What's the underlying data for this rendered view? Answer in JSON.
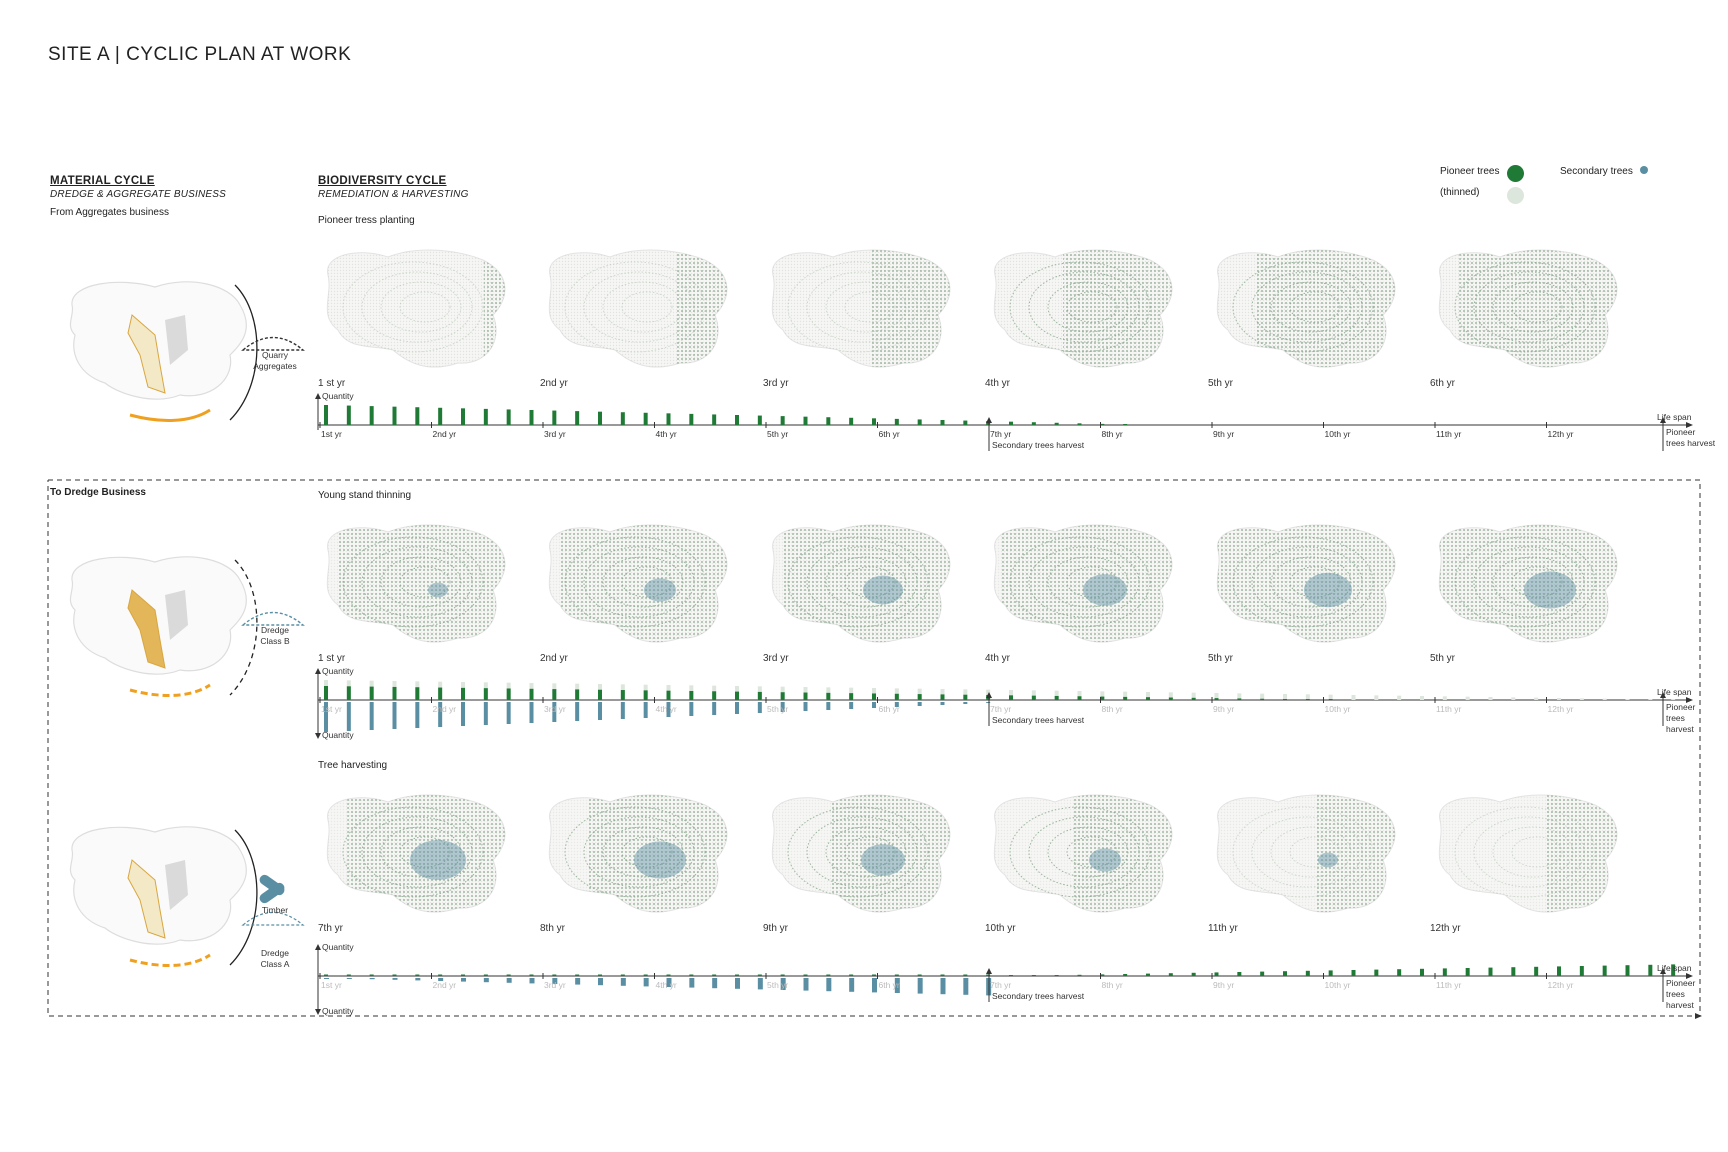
{
  "title": "SITE A | CYCLIC PLAN AT WORK",
  "colors": {
    "pioneer": "#1f7a35",
    "pioneer_thinned": "#dde6dc",
    "secondary": "#5a8fa3",
    "sand": "#f3e9c6",
    "orange": "#f0a020",
    "map_fill": "#b8ccb8"
  },
  "material_cycle": {
    "heading": "MATERIAL CYCLE",
    "subheading": "DREDGE & AGGREGATE BUSINESS",
    "from_label": "From Aggregates business",
    "to_label": "To Dredge Business",
    "items": [
      {
        "label1": "Quarry",
        "label2": "Aggregates",
        "icon": "gravel-pile-icon"
      },
      {
        "label1": "Dredge",
        "label2": "Class B",
        "icon": "dredge-pile-icon"
      },
      {
        "label1": "Timber",
        "label2": "",
        "icon": "timber-logs-icon",
        "extra1": "Dredge",
        "extra2": "Class A"
      }
    ]
  },
  "biodiversity_cycle": {
    "heading": "BIODIVERSITY CYCLE",
    "subheading": "REMEDIATION & HARVESTING"
  },
  "legend": {
    "pioneer_label": "Pioneer trees",
    "thinned_label": "(thinned)",
    "secondary_label": "Secondary trees"
  },
  "rows": [
    {
      "stage": "Pioneer tress planting",
      "map_labels": [
        "1 st yr",
        "2nd yr",
        "3rd yr",
        "4th yr",
        "5th yr",
        "6th yr"
      ],
      "coverage": [
        0.15,
        0.3,
        0.45,
        0.6,
        0.75,
        0.85
      ],
      "teal": [
        0,
        0,
        0,
        0,
        0,
        0
      ],
      "axis_top": "Quantity",
      "axis_bottom": "",
      "ticks": [
        "1st yr",
        "2nd yr",
        "3rd yr",
        "4th yr",
        "5th yr",
        "6th yr",
        "7th yr",
        "8th yr",
        "9th yr",
        "10th yr",
        "11th yr",
        "12th yr"
      ],
      "secondary_note": "Secondary trees harvest",
      "lifespan": "Life span",
      "end_note": [
        "Pioneer",
        "trees harvest"
      ]
    },
    {
      "stage": "Young stand thinning",
      "map_labels": [
        "1 st yr",
        "2nd yr",
        "3rd yr",
        "4th yr",
        "5th yr",
        "5th yr"
      ],
      "coverage": [
        0.9,
        0.9,
        0.9,
        0.92,
        0.95,
        0.95
      ],
      "teal": [
        0.05,
        0.2,
        0.3,
        0.35,
        0.4,
        0.45
      ],
      "axis_top": "Quantity",
      "axis_bottom": "Quantity",
      "ticks": [
        "1st yr",
        "2nd yr",
        "3rd yr",
        "4th yr",
        "5th yr",
        "6th yr",
        "7th yr",
        "8th yr",
        "9th yr",
        "10th yr",
        "11th yr",
        "12th yr"
      ],
      "secondary_note": "Secondary trees harvest",
      "lifespan": "Life span",
      "end_note": [
        "Pioneer",
        "trees",
        "harvest"
      ]
    },
    {
      "stage": "Tree harvesting",
      "map_labels": [
        "7th yr",
        "8th yr",
        "9th yr",
        "10th yr",
        "11th yr",
        "12th yr"
      ],
      "coverage": [
        0.85,
        0.75,
        0.65,
        0.55,
        0.45,
        0.4
      ],
      "teal": [
        0.5,
        0.45,
        0.35,
        0.2,
        0.05,
        0
      ],
      "axis_top": "Quantity",
      "axis_bottom": "Quantity",
      "ticks": [
        "1st yr",
        "2nd yr",
        "3rd yr",
        "4th yr",
        "5th yr",
        "6th yr",
        "7th yr",
        "8th yr",
        "9th yr",
        "10th yr",
        "11th yr",
        "12th yr"
      ],
      "secondary_note": "Secondary trees harvest",
      "lifespan": "Life span",
      "end_note": [
        "Pioneer",
        "trees",
        "harvest"
      ]
    }
  ]
}
